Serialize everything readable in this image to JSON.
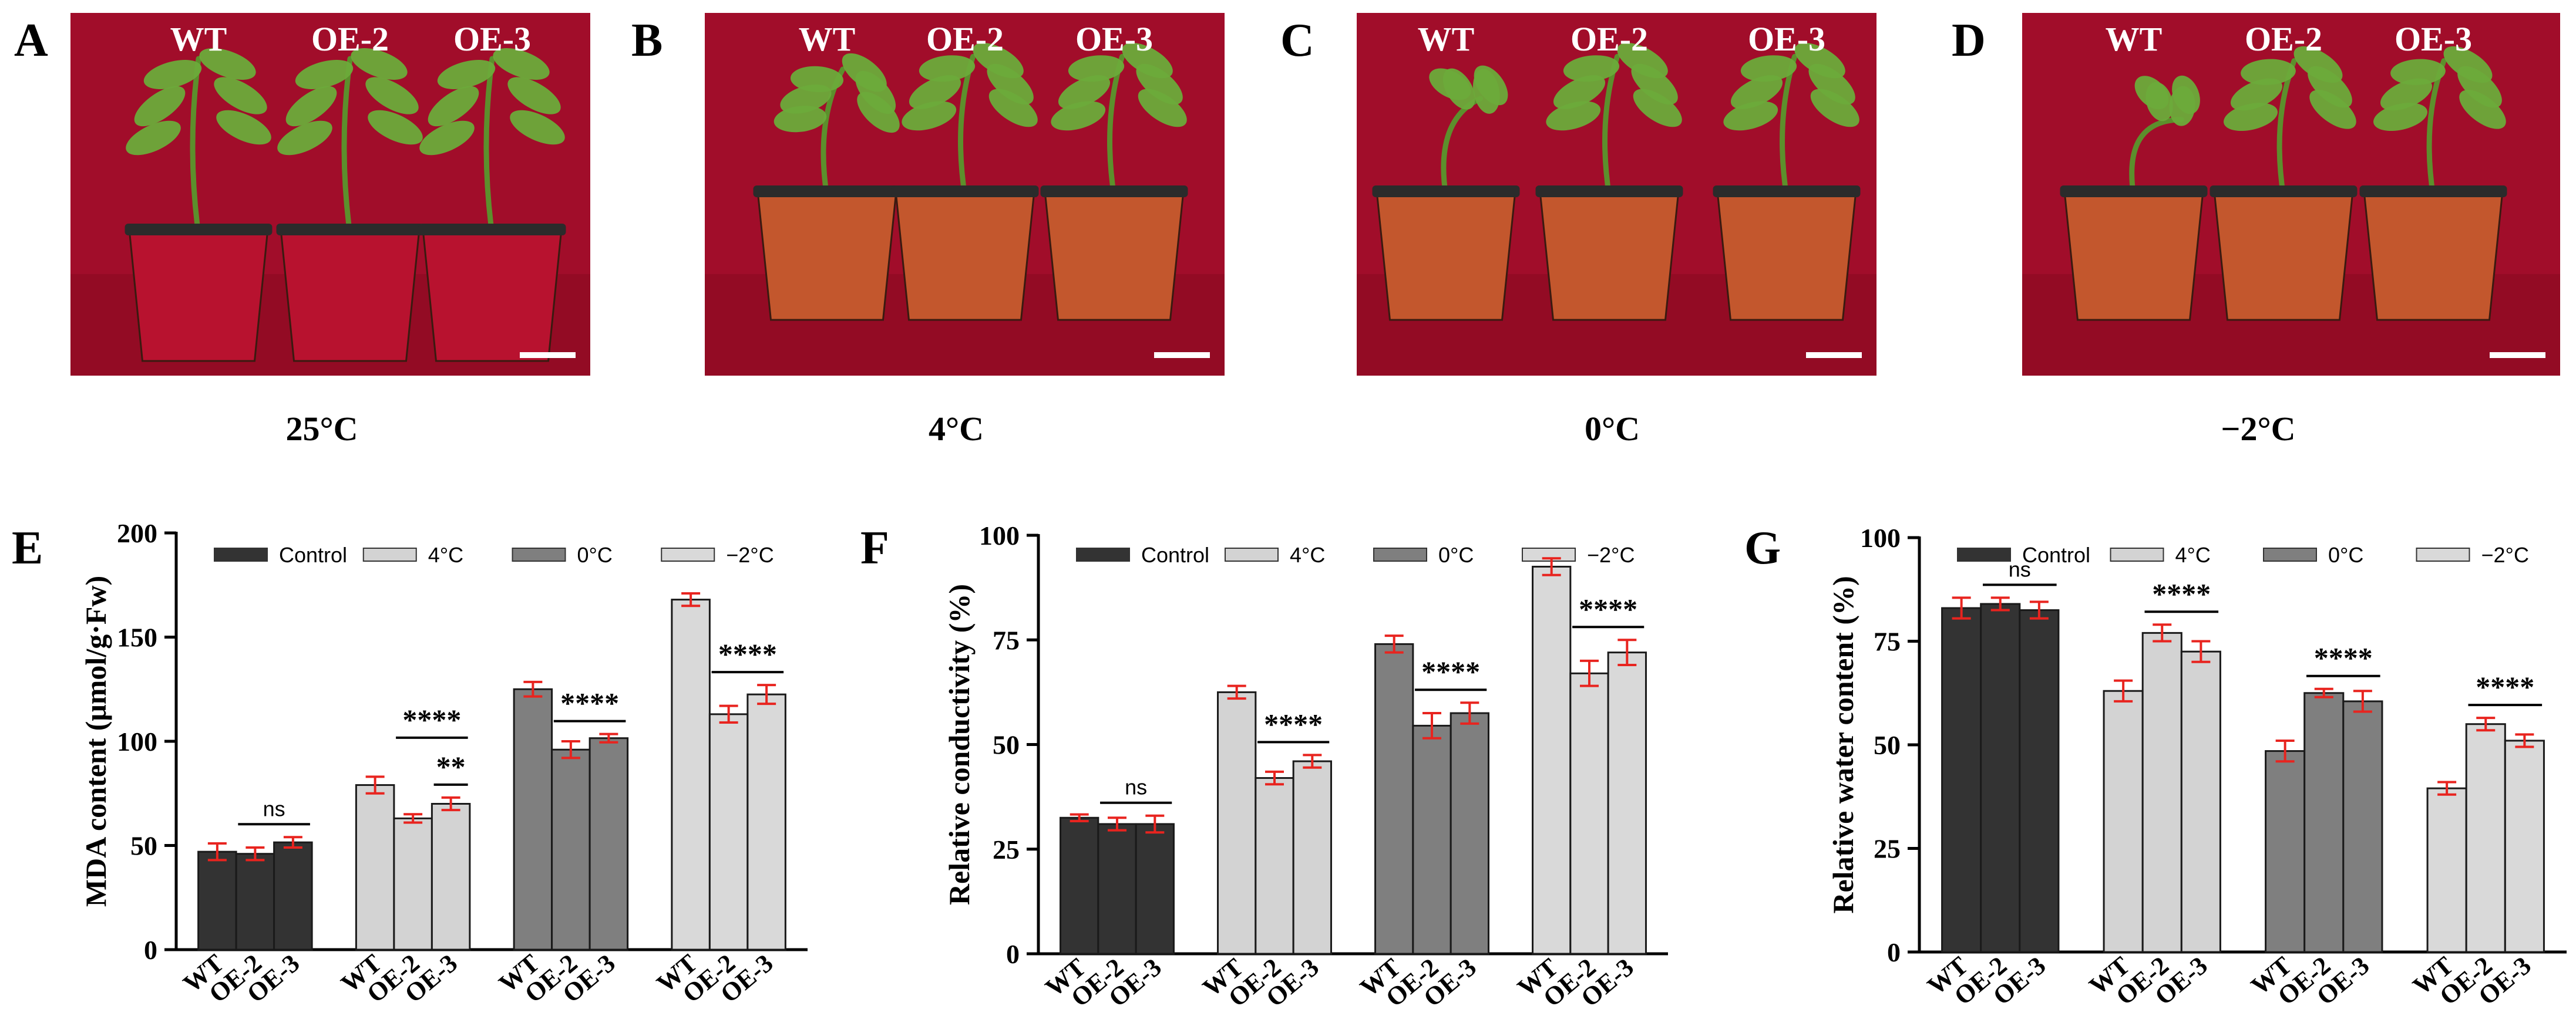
{
  "figure": {
    "photo_panels": [
      {
        "letter": "A",
        "temperature": "25°C",
        "plant_labels": [
          "WT",
          "OE-2",
          "OE-3"
        ],
        "pot_color": "#b8122f",
        "health": [
          1,
          1,
          1
        ]
      },
      {
        "letter": "B",
        "temperature": "4°C",
        "plant_labels": [
          "WT",
          "OE-2",
          "OE-3"
        ],
        "pot_color": "#c3572d",
        "health": [
          0.7,
          0.85,
          0.85
        ]
      },
      {
        "letter": "C",
        "temperature": "0°C",
        "plant_labels": [
          "WT",
          "OE-2",
          "OE-3"
        ],
        "pot_color": "#c3572d",
        "health": [
          0.35,
          0.85,
          0.85
        ]
      },
      {
        "letter": "D",
        "temperature": "−2°C",
        "plant_labels": [
          "WT",
          "OE-2",
          "OE-3"
        ],
        "pot_color": "#c3572d",
        "health": [
          0.1,
          0.8,
          0.8
        ]
      }
    ],
    "colors": {
      "photo_background": "#a10d2a",
      "leaf": "#6cab3a",
      "stem": "#5c8f2c",
      "error_bar": "#e8241f",
      "bar_control": "#333333",
      "bar_4": "#d3d3d3",
      "bar_0": "#7f7f7f",
      "bar_m2": "#d9d9d9"
    }
  },
  "chart_data": [
    {
      "letter": "E",
      "type": "bar",
      "ylabel": "MDA content (μmol/g·Fw)",
      "ylim": [
        0,
        200
      ],
      "yticks": [
        0,
        50,
        100,
        150,
        200
      ],
      "legend": [
        "Control",
        "4°C",
        "0°C",
        "−2°C"
      ],
      "categories": [
        "WT",
        "OE-2",
        "OE-3"
      ],
      "series": [
        {
          "name": "Control",
          "values": [
            47,
            46,
            51.5
          ],
          "errors": [
            4,
            3,
            2.5
          ]
        },
        {
          "name": "4°C",
          "values": [
            79,
            63,
            70
          ],
          "errors": [
            4,
            2,
            3
          ]
        },
        {
          "name": "0°C",
          "values": [
            125,
            96,
            101.5
          ],
          "errors": [
            3.5,
            4,
            2
          ]
        },
        {
          "name": "−2°C",
          "values": [
            168,
            113,
            122.5
          ],
          "errors": [
            3,
            4,
            4.5
          ]
        }
      ],
      "significance": [
        {
          "group": 0,
          "from": 1,
          "to": 2,
          "level": 0,
          "label": "ns"
        },
        {
          "group": 1,
          "from": 1,
          "to": 2,
          "level": 1,
          "label": "****"
        },
        {
          "group": 1,
          "from": 2,
          "to": 2,
          "level": 0,
          "label": "**"
        },
        {
          "group": 2,
          "from": 1,
          "to": 2,
          "level": 0,
          "label": "****"
        },
        {
          "group": 3,
          "from": 1,
          "to": 2,
          "level": 0,
          "label": "****"
        }
      ]
    },
    {
      "letter": "F",
      "type": "bar",
      "ylabel": "Relative conductivity (%)",
      "ylim": [
        0,
        100
      ],
      "yticks": [
        0,
        25,
        50,
        75,
        100
      ],
      "legend": [
        "Control",
        "4°C",
        "0°C",
        "−2°C"
      ],
      "categories": [
        "WT",
        "OE-2",
        "OE-3"
      ],
      "series": [
        {
          "name": "Control",
          "values": [
            32.5,
            31,
            31
          ],
          "errors": [
            0.8,
            1.5,
            2
          ]
        },
        {
          "name": "4°C",
          "values": [
            62.5,
            42,
            46
          ],
          "errors": [
            1.5,
            1.5,
            1.5
          ]
        },
        {
          "name": "0°C",
          "values": [
            74,
            54.5,
            57.5
          ],
          "errors": [
            2,
            3,
            2.5
          ]
        },
        {
          "name": "−2°C",
          "values": [
            92.5,
            67,
            72
          ],
          "errors": [
            2,
            3,
            3
          ]
        }
      ],
      "significance": [
        {
          "group": 0,
          "from": 1,
          "to": 2,
          "level": 0,
          "label": "ns"
        },
        {
          "group": 1,
          "from": 1,
          "to": 2,
          "level": 0,
          "label": "****"
        },
        {
          "group": 2,
          "from": 1,
          "to": 2,
          "level": 0,
          "label": "****"
        },
        {
          "group": 3,
          "from": 1,
          "to": 2,
          "level": 0,
          "label": "****"
        }
      ]
    },
    {
      "letter": "G",
      "type": "bar",
      "ylabel": "Relative water content (%)",
      "ylim": [
        0,
        100
      ],
      "yticks": [
        0,
        25,
        50,
        75,
        100
      ],
      "legend": [
        "Control",
        "4°C",
        "0°C",
        "−2°C"
      ],
      "categories": [
        "WT",
        "OE-2",
        "OE-3"
      ],
      "series": [
        {
          "name": "Control",
          "values": [
            83,
            84,
            82.5
          ],
          "errors": [
            2.5,
            1.5,
            2
          ]
        },
        {
          "name": "4°C",
          "values": [
            63,
            77,
            72.5
          ],
          "errors": [
            2.5,
            2,
            2.5
          ]
        },
        {
          "name": "0°C",
          "values": [
            48.5,
            62.5,
            60.5
          ],
          "errors": [
            2.5,
            1,
            2.5
          ]
        },
        {
          "name": "−2°C",
          "values": [
            39.5,
            55,
            51
          ],
          "errors": [
            1.5,
            1.5,
            1.5
          ]
        }
      ],
      "significance": [
        {
          "group": 0,
          "from": 1,
          "to": 2,
          "level": 0,
          "label": "ns"
        },
        {
          "group": 1,
          "from": 1,
          "to": 2,
          "level": 0,
          "label": "****"
        },
        {
          "group": 2,
          "from": 1,
          "to": 2,
          "level": 0,
          "label": "****"
        },
        {
          "group": 3,
          "from": 1,
          "to": 2,
          "level": 0,
          "label": "****"
        }
      ]
    }
  ]
}
